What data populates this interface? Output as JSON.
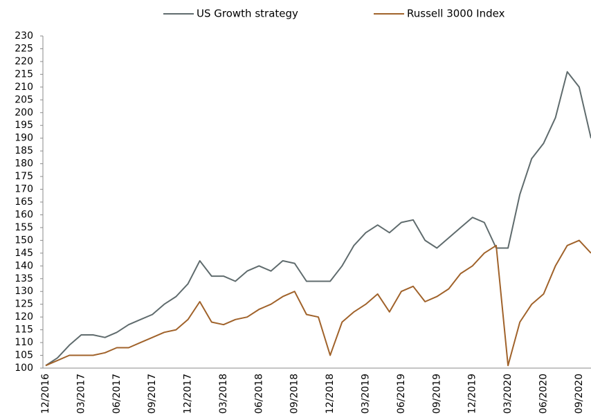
{
  "chart_data": {
    "type": "line",
    "categories": [
      "12/2016",
      null,
      null,
      "03/2017",
      null,
      null,
      "06/2017",
      null,
      null,
      "09/2017",
      null,
      null,
      "12/2017",
      null,
      null,
      "03/2018",
      null,
      null,
      "06/2018",
      null,
      null,
      "09/2018",
      null,
      null,
      "12/2018",
      null,
      null,
      "03/2019",
      null,
      null,
      "06/2019",
      null,
      null,
      "09/2019",
      null,
      null,
      "12/2019",
      null,
      null,
      "03/2020",
      null,
      null,
      "06/2020",
      null,
      null,
      "09/2020",
      null
    ],
    "series": [
      {
        "name": "US Growth strategy",
        "color": "#5f6b6d",
        "values": [
          101,
          104,
          109,
          113,
          113,
          112,
          114,
          117,
          119,
          121,
          125,
          128,
          133,
          142,
          136,
          136,
          134,
          138,
          140,
          138,
          142,
          141,
          134,
          134,
          134,
          140,
          148,
          153,
          156,
          153,
          157,
          158,
          150,
          147,
          151,
          155,
          159,
          157,
          147,
          147,
          168,
          182,
          188,
          198,
          216,
          210,
          190
        ]
      },
      {
        "name": "Russell 3000 Index",
        "color": "#a0622a",
        "values": [
          101,
          103,
          105,
          105,
          105,
          106,
          108,
          108,
          110,
          112,
          114,
          115,
          119,
          126,
          118,
          117,
          119,
          120,
          123,
          125,
          128,
          130,
          121,
          120,
          105,
          118,
          122,
          125,
          129,
          122,
          130,
          132,
          126,
          128,
          131,
          137,
          140,
          145,
          148,
          101,
          118,
          125,
          129,
          140,
          148,
          150,
          145
        ]
      }
    ],
    "ylim": [
      100,
      230
    ],
    "yticks": [
      100,
      105,
      110,
      115,
      120,
      125,
      130,
      135,
      140,
      145,
      150,
      155,
      160,
      165,
      170,
      175,
      180,
      185,
      190,
      195,
      200,
      205,
      210,
      215,
      220,
      225,
      230
    ],
    "grid": false,
    "legend": "top"
  }
}
